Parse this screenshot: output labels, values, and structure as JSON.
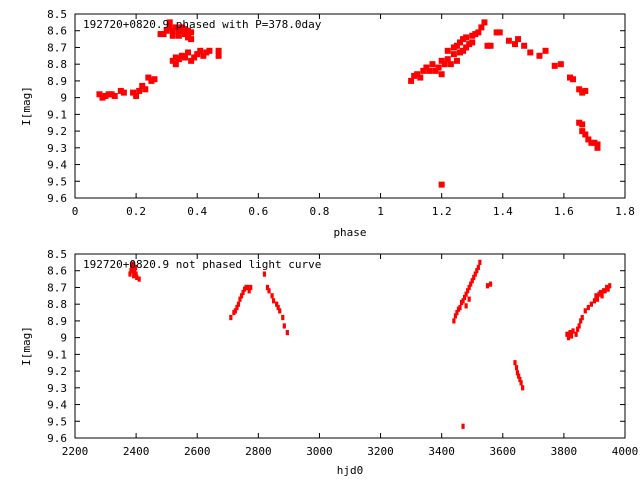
{
  "chart_data": [
    {
      "type": "scatter",
      "title": "192720+0820.9 phased with P=378.0day",
      "xlabel": "phase",
      "ylabel": "I[mag]",
      "xlim": [
        0,
        1.8
      ],
      "ylim": [
        8.5,
        9.6
      ],
      "y_inverted": true,
      "xticks": [
        0,
        0.2,
        0.4,
        0.6,
        0.8,
        1,
        1.2,
        1.4,
        1.6,
        1.8
      ],
      "yticks": [
        8.5,
        8.6,
        8.7,
        8.8,
        8.9,
        9,
        9.1,
        9.2,
        9.3,
        9.4,
        9.5,
        9.6
      ],
      "marker_color": "#ff0000",
      "grid": false,
      "points": [
        [
          0.08,
          8.98
        ],
        [
          0.09,
          9.0
        ],
        [
          0.1,
          8.99
        ],
        [
          0.11,
          8.98
        ],
        [
          0.12,
          8.98
        ],
        [
          0.13,
          8.99
        ],
        [
          0.15,
          8.96
        ],
        [
          0.16,
          8.97
        ],
        [
          0.19,
          8.97
        ],
        [
          0.2,
          8.99
        ],
        [
          0.21,
          8.96
        ],
        [
          0.22,
          8.93
        ],
        [
          0.23,
          8.95
        ],
        [
          0.24,
          8.88
        ],
        [
          0.25,
          8.9
        ],
        [
          0.26,
          8.89
        ],
        [
          0.28,
          8.62
        ],
        [
          0.29,
          8.62
        ],
        [
          0.3,
          8.6
        ],
        [
          0.31,
          8.55
        ],
        [
          0.31,
          8.58
        ],
        [
          0.32,
          8.6
        ],
        [
          0.32,
          8.63
        ],
        [
          0.33,
          8.58
        ],
        [
          0.34,
          8.6
        ],
        [
          0.34,
          8.63
        ],
        [
          0.35,
          8.58
        ],
        [
          0.35,
          8.6
        ],
        [
          0.36,
          8.62
        ],
        [
          0.36,
          8.59
        ],
        [
          0.37,
          8.64
        ],
        [
          0.37,
          8.6
        ],
        [
          0.38,
          8.61
        ],
        [
          0.38,
          8.65
        ],
        [
          0.32,
          8.78
        ],
        [
          0.33,
          8.8
        ],
        [
          0.33,
          8.76
        ],
        [
          0.34,
          8.77
        ],
        [
          0.35,
          8.75
        ],
        [
          0.36,
          8.76
        ],
        [
          0.37,
          8.73
        ],
        [
          0.38,
          8.78
        ],
        [
          0.39,
          8.76
        ],
        [
          0.4,
          8.74
        ],
        [
          0.41,
          8.72
        ],
        [
          0.42,
          8.75
        ],
        [
          0.43,
          8.73
        ],
        [
          0.44,
          8.72
        ],
        [
          0.47,
          8.72
        ],
        [
          0.47,
          8.75
        ],
        [
          1.1,
          8.9
        ],
        [
          1.11,
          8.87
        ],
        [
          1.12,
          8.86
        ],
        [
          1.13,
          8.88
        ],
        [
          1.14,
          8.84
        ],
        [
          1.15,
          8.82
        ],
        [
          1.16,
          8.84
        ],
        [
          1.17,
          8.8
        ],
        [
          1.18,
          8.84
        ],
        [
          1.19,
          8.82
        ],
        [
          1.2,
          8.78
        ],
        [
          1.21,
          8.8
        ],
        [
          1.2,
          8.86
        ],
        [
          1.22,
          8.77
        ],
        [
          1.22,
          8.72
        ],
        [
          1.23,
          8.8
        ],
        [
          1.24,
          8.74
        ],
        [
          1.24,
          8.7
        ],
        [
          1.25,
          8.78
        ],
        [
          1.25,
          8.69
        ],
        [
          1.26,
          8.73
        ],
        [
          1.26,
          8.67
        ],
        [
          1.27,
          8.72
        ],
        [
          1.27,
          8.65
        ],
        [
          1.28,
          8.7
        ],
        [
          1.28,
          8.64
        ],
        [
          1.29,
          8.68
        ],
        [
          1.3,
          8.63
        ],
        [
          1.3,
          8.67
        ],
        [
          1.31,
          8.62
        ],
        [
          1.32,
          8.61
        ],
        [
          1.33,
          8.58
        ],
        [
          1.34,
          8.55
        ],
        [
          1.35,
          8.69
        ],
        [
          1.36,
          8.69
        ],
        [
          1.38,
          8.61
        ],
        [
          1.39,
          8.61
        ],
        [
          1.42,
          8.66
        ],
        [
          1.44,
          8.68
        ],
        [
          1.45,
          8.65
        ],
        [
          1.47,
          8.69
        ],
        [
          1.49,
          8.73
        ],
        [
          1.52,
          8.75
        ],
        [
          1.54,
          8.72
        ],
        [
          1.57,
          8.81
        ],
        [
          1.59,
          8.8
        ],
        [
          1.62,
          8.88
        ],
        [
          1.63,
          8.89
        ],
        [
          1.65,
          8.95
        ],
        [
          1.66,
          8.97
        ],
        [
          1.67,
          8.96
        ],
        [
          1.65,
          9.15
        ],
        [
          1.66,
          9.16
        ],
        [
          1.66,
          9.2
        ],
        [
          1.67,
          9.22
        ],
        [
          1.68,
          9.25
        ],
        [
          1.69,
          9.27
        ],
        [
          1.7,
          9.27
        ],
        [
          1.71,
          9.28
        ],
        [
          1.71,
          9.3
        ],
        [
          1.2,
          9.52
        ]
      ]
    },
    {
      "type": "scatter",
      "title": "192720+0820.9 not phased light curve",
      "xlabel": "hjd0",
      "ylabel": "I[mag]",
      "xlim": [
        2200,
        4000
      ],
      "ylim": [
        8.5,
        9.6
      ],
      "y_inverted": true,
      "xticks": [
        2200,
        2400,
        2600,
        2800,
        3000,
        3200,
        3400,
        3600,
        3800,
        4000
      ],
      "yticks": [
        8.5,
        8.6,
        8.7,
        8.8,
        8.9,
        9,
        9.1,
        9.2,
        9.3,
        9.4,
        9.5,
        9.6
      ],
      "marker_color": "#ff0000",
      "grid": false,
      "points": [
        [
          2380,
          8.62
        ],
        [
          2383,
          8.6
        ],
        [
          2385,
          8.57
        ],
        [
          2387,
          8.59
        ],
        [
          2389,
          8.56
        ],
        [
          2390,
          8.6
        ],
        [
          2392,
          8.63
        ],
        [
          2393,
          8.58
        ],
        [
          2395,
          8.61
        ],
        [
          2396,
          8.6
        ],
        [
          2398,
          8.58
        ],
        [
          2400,
          8.62
        ],
        [
          2402,
          8.64
        ],
        [
          2410,
          8.65
        ],
        [
          2710,
          8.88
        ],
        [
          2720,
          8.85
        ],
        [
          2725,
          8.84
        ],
        [
          2730,
          8.82
        ],
        [
          2735,
          8.8
        ],
        [
          2740,
          8.77
        ],
        [
          2745,
          8.75
        ],
        [
          2750,
          8.73
        ],
        [
          2755,
          8.71
        ],
        [
          2760,
          8.7
        ],
        [
          2765,
          8.7
        ],
        [
          2770,
          8.72
        ],
        [
          2775,
          8.7
        ],
        [
          2820,
          8.62
        ],
        [
          2830,
          8.7
        ],
        [
          2835,
          8.72
        ],
        [
          2845,
          8.75
        ],
        [
          2850,
          8.78
        ],
        [
          2860,
          8.8
        ],
        [
          2865,
          8.82
        ],
        [
          2870,
          8.84
        ],
        [
          2880,
          8.88
        ],
        [
          2885,
          8.93
        ],
        [
          2895,
          8.97
        ],
        [
          3440,
          8.9
        ],
        [
          3445,
          8.87
        ],
        [
          3450,
          8.85
        ],
        [
          3455,
          8.83
        ],
        [
          3460,
          8.82
        ],
        [
          3465,
          8.79
        ],
        [
          3470,
          8.78
        ],
        [
          3475,
          8.76
        ],
        [
          3480,
          8.74
        ],
        [
          3485,
          8.72
        ],
        [
          3490,
          8.7
        ],
        [
          3495,
          8.68
        ],
        [
          3500,
          8.66
        ],
        [
          3505,
          8.64
        ],
        [
          3510,
          8.62
        ],
        [
          3515,
          8.6
        ],
        [
          3520,
          8.58
        ],
        [
          3525,
          8.55
        ],
        [
          3480,
          8.81
        ],
        [
          3490,
          8.77
        ],
        [
          3550,
          8.69
        ],
        [
          3560,
          8.68
        ],
        [
          3640,
          9.15
        ],
        [
          3645,
          9.18
        ],
        [
          3648,
          9.21
        ],
        [
          3652,
          9.23
        ],
        [
          3656,
          9.25
        ],
        [
          3660,
          9.27
        ],
        [
          3665,
          9.3
        ],
        [
          3470,
          9.53
        ],
        [
          3810,
          8.98
        ],
        [
          3815,
          9.0
        ],
        [
          3820,
          8.97
        ],
        [
          3825,
          8.99
        ],
        [
          3830,
          8.96
        ],
        [
          3840,
          8.98
        ],
        [
          3845,
          8.95
        ],
        [
          3850,
          8.93
        ],
        [
          3855,
          8.9
        ],
        [
          3860,
          8.88
        ],
        [
          3870,
          8.84
        ],
        [
          3880,
          8.82
        ],
        [
          3890,
          8.8
        ],
        [
          3900,
          8.78
        ],
        [
          3905,
          8.75
        ],
        [
          3910,
          8.77
        ],
        [
          3915,
          8.74
        ],
        [
          3920,
          8.73
        ],
        [
          3925,
          8.75
        ],
        [
          3930,
          8.72
        ],
        [
          3935,
          8.72
        ],
        [
          3940,
          8.7
        ],
        [
          3945,
          8.71
        ],
        [
          3950,
          8.69
        ]
      ]
    }
  ]
}
